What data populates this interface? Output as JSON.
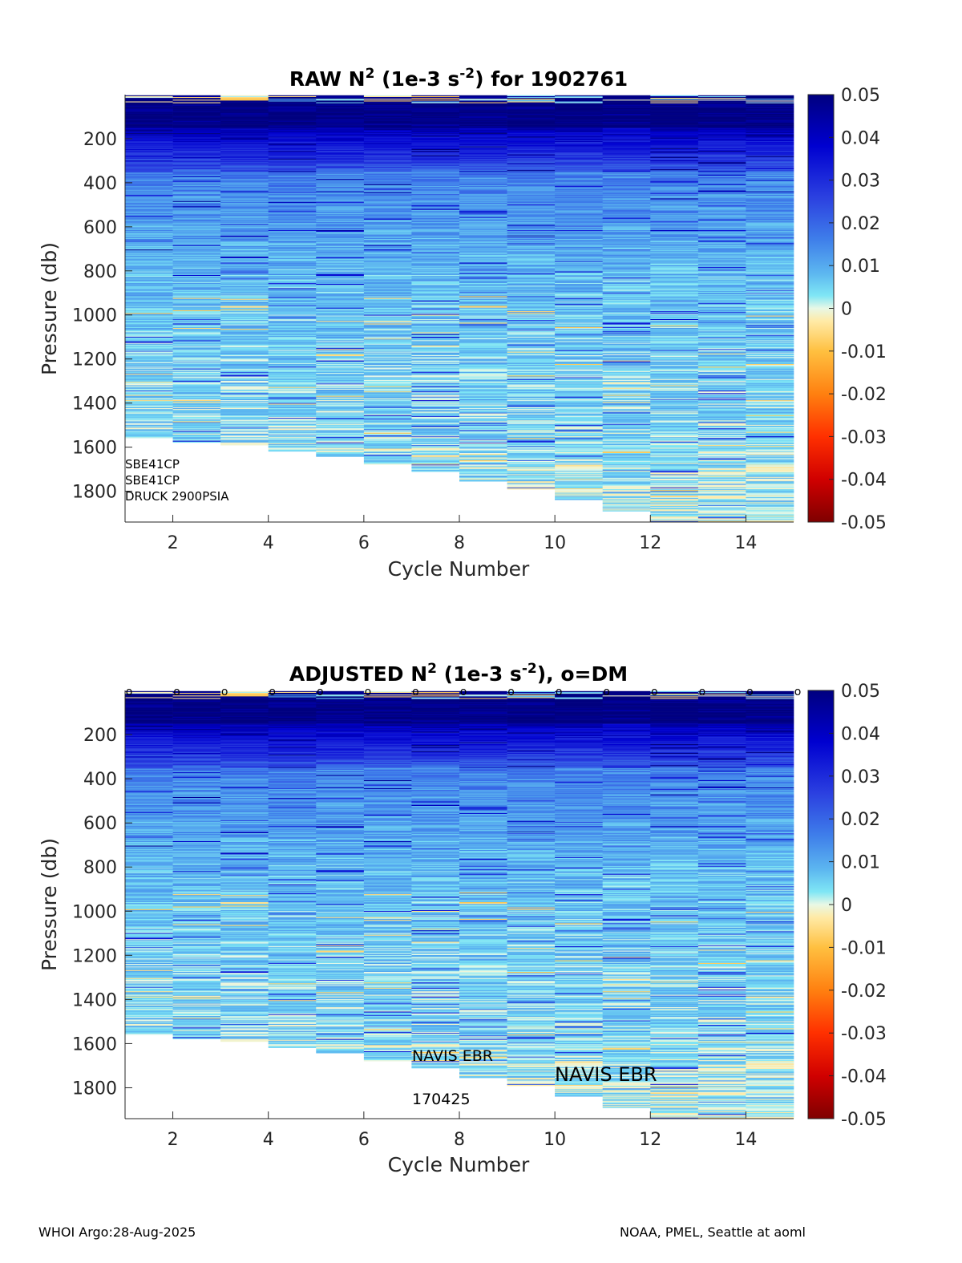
{
  "footer": {
    "left": "WHOI Argo:28-Aug-2025",
    "right": "NOAA, PMEL, Seattle at aoml"
  },
  "chart_data": [
    {
      "type": "heatmap",
      "title": "RAW N^2 (1e-3 s^-2) for 1902761",
      "title_parts": {
        "a": "RAW N",
        "sup1": "2",
        "b": " (1e-3 s",
        "sup2": "-2",
        "c": ") for 1902761"
      },
      "xlabel": "Cycle Number",
      "ylabel": "Pressure (db)",
      "xlim": [
        1,
        15
      ],
      "ylim": [
        1940,
        0
      ],
      "xticks": [
        2,
        4,
        6,
        8,
        10,
        12,
        14
      ],
      "yticks": [
        200,
        400,
        600,
        800,
        1000,
        1200,
        1400,
        1600,
        1800
      ],
      "colorbar": {
        "min": -0.05,
        "max": 0.05,
        "ticks": [
          "0.05",
          "0.04",
          "0.03",
          "0.02",
          "0.01",
          "0",
          "-0.01",
          "-0.02",
          "-0.03",
          "-0.04",
          "-0.05"
        ]
      },
      "cycles": [
        1,
        2,
        3,
        4,
        5,
        6,
        7,
        8,
        9,
        10,
        11,
        12,
        13,
        14
      ],
      "max_pressure": [
        1560,
        1580,
        1590,
        1620,
        1645,
        1680,
        1710,
        1755,
        1790,
        1840,
        1890,
        1945,
        1945,
        1945
      ],
      "annotations": [
        "SBE41CP",
        "SBE41CP",
        "DRUCK 2900PSIA"
      ],
      "dm_markers": []
    },
    {
      "type": "heatmap",
      "title": "ADJUSTED N^2 (1e-3 s^-2), o=DM",
      "title_parts": {
        "a": "ADJUSTED N",
        "sup1": "2",
        "b": " (1e-3 s",
        "sup2": "-2",
        "c": "), o=DM"
      },
      "xlabel": "Cycle Number",
      "ylabel": "Pressure (db)",
      "xlim": [
        1,
        15
      ],
      "ylim": [
        1940,
        0
      ],
      "xticks": [
        2,
        4,
        6,
        8,
        10,
        12,
        14
      ],
      "yticks": [
        200,
        400,
        600,
        800,
        1000,
        1200,
        1400,
        1600,
        1800
      ],
      "colorbar": {
        "min": -0.05,
        "max": 0.05,
        "ticks": [
          "0.05",
          "0.04",
          "0.03",
          "0.02",
          "0.01",
          "0",
          "-0.01",
          "-0.02",
          "-0.03",
          "-0.04",
          "-0.05"
        ]
      },
      "cycles": [
        1,
        2,
        3,
        4,
        5,
        6,
        7,
        8,
        9,
        10,
        11,
        12,
        13,
        14
      ],
      "max_pressure": [
        1560,
        1580,
        1590,
        1620,
        1645,
        1680,
        1710,
        1755,
        1790,
        1840,
        1890,
        1945,
        1945,
        1945
      ],
      "annotations": [
        "NAVIS EBR",
        "NAVIS EBR",
        "170425"
      ],
      "dm_markers": [
        1,
        2,
        3,
        4,
        5,
        6,
        7,
        8,
        9,
        10,
        11,
        12,
        13,
        14,
        15
      ],
      "dm_symbol": "o"
    }
  ]
}
